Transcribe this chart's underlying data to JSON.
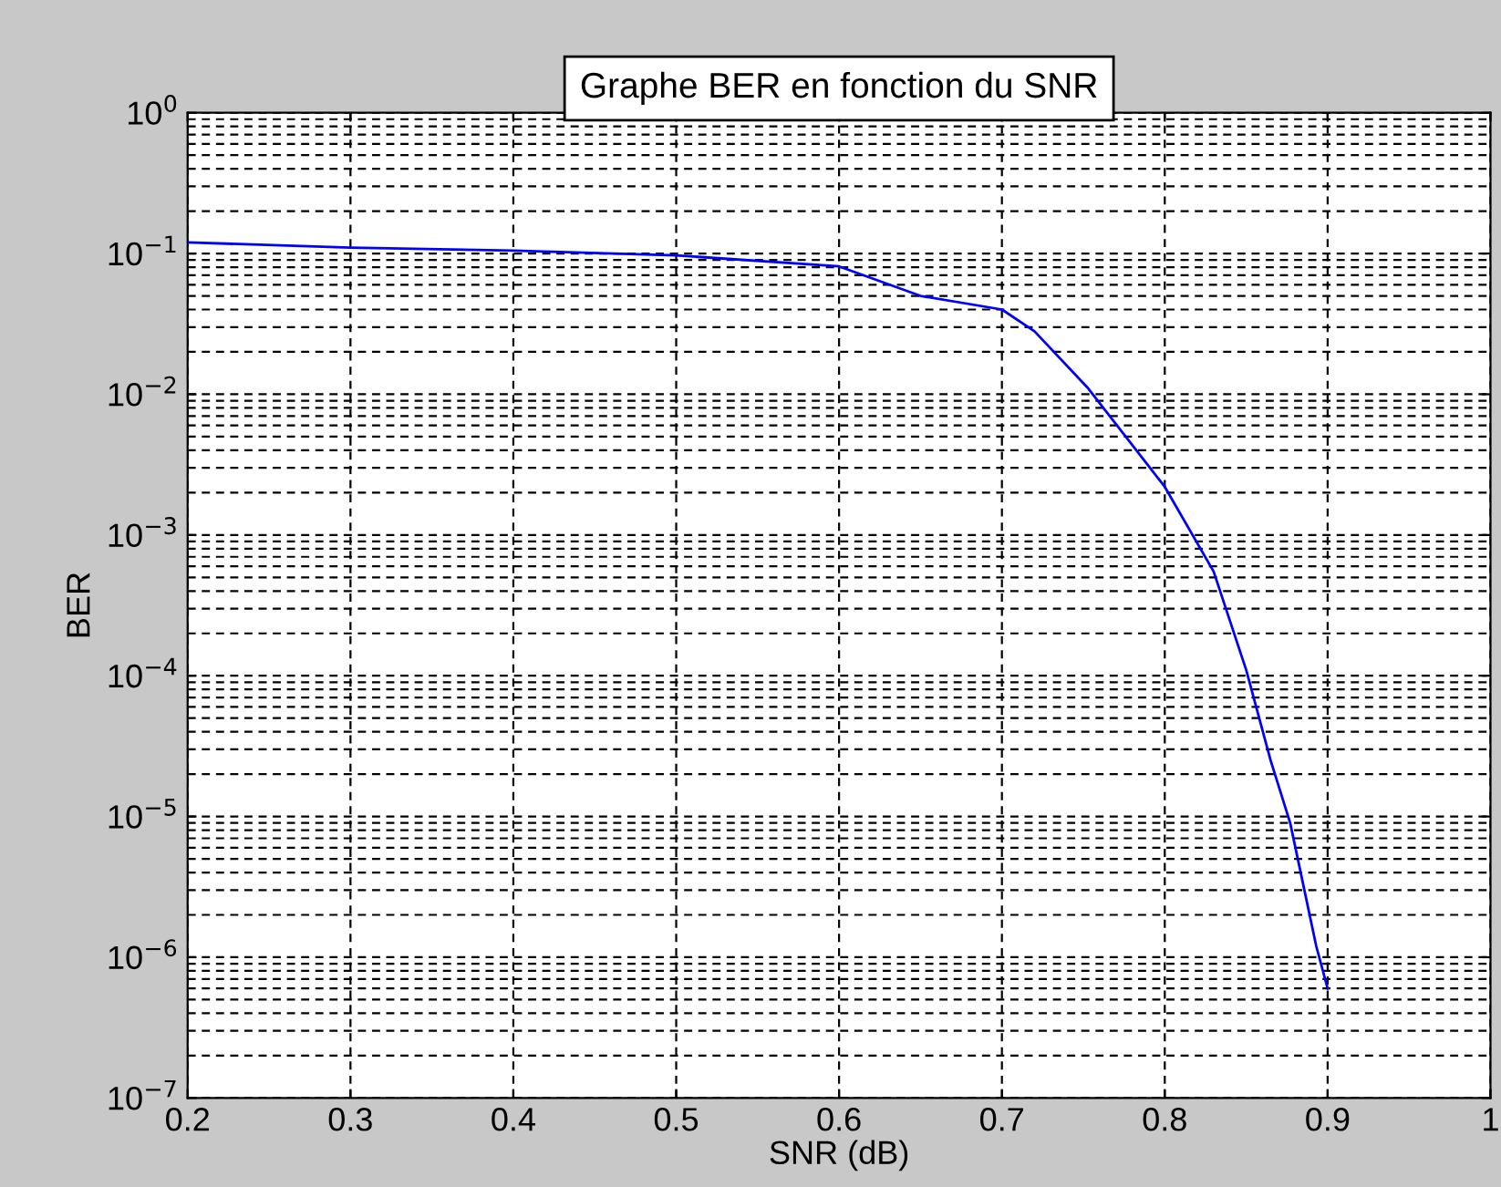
{
  "chart_data": {
    "type": "line",
    "title": "Graphe BER en fonction du SNR",
    "xlabel": "SNR (dB)",
    "ylabel": "BER",
    "log": "y",
    "grid": true,
    "line_style": "solid",
    "x": [
      0.2,
      0.3,
      0.4,
      0.5,
      0.6,
      0.65,
      0.7,
      0.72,
      0.753,
      0.8,
      0.83,
      0.85,
      0.865,
      0.877,
      0.893,
      0.9
    ],
    "series": [
      {
        "color": "#0000ff",
        "values": [
          0.12,
          0.11,
          0.105,
          0.097,
          0.081,
          0.05,
          0.04,
          0.028,
          0.011,
          0.0022,
          0.00055,
          0.00011,
          2.5e-05,
          9e-06,
          1.2e-06,
          6e-07
        ]
      }
    ],
    "xlim": [
      0.2,
      1
    ],
    "xticks": [
      0.2,
      0.3,
      0.4,
      0.5,
      0.6,
      0.7,
      0.8,
      0.9,
      1
    ],
    "ylim": [
      1e-07,
      1
    ],
    "yticks": [
      {
        "value": 1e-07,
        "label": "10$^{−7}$"
      },
      {
        "value": 1e-06,
        "label": "10$^{−6}$"
      },
      {
        "value": 1e-05,
        "label": "10$^{−5}$"
      },
      {
        "value": 0.0001,
        "label": "10$^{−4}$"
      },
      {
        "value": 0.001,
        "label": "10$^{−3}$"
      },
      {
        "value": 0.01,
        "label": "10$^{−2}$"
      },
      {
        "value": 0.1,
        "label": "10$^{−1}$"
      },
      {
        "value": 1,
        "label": "10$^{0}$"
      }
    ]
  }
}
